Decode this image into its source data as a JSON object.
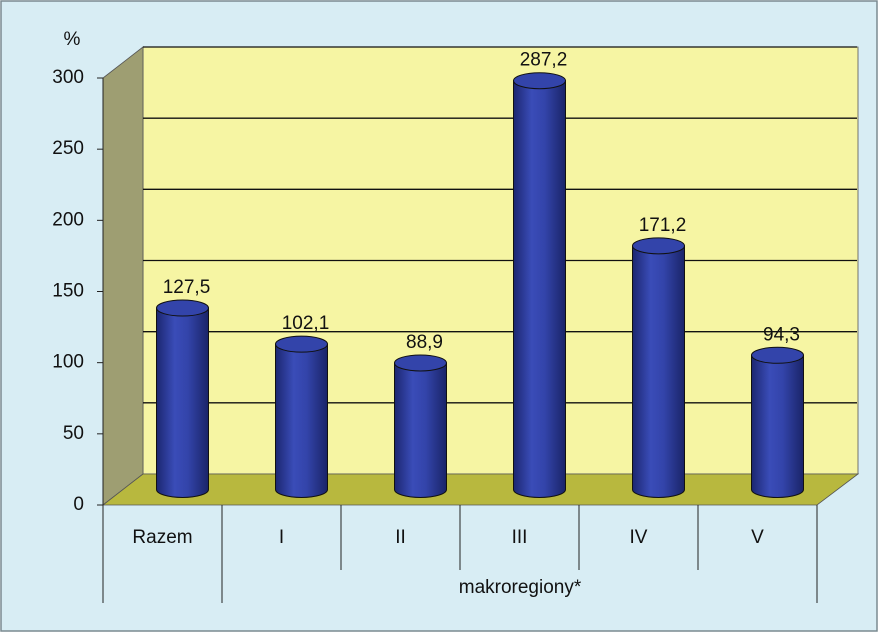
{
  "chart_data": {
    "type": "bar3d-cylinder",
    "y_label": "%",
    "categories": [
      "Razem",
      "I",
      "II",
      "III",
      "IV",
      "V"
    ],
    "group_label": "makroregiony*",
    "values": [
      127.5,
      102.1,
      88.9,
      287.2,
      171.2,
      94.3
    ],
    "value_labels": [
      "127,5",
      "102,1",
      "88,9",
      "287,2",
      "171,2",
      "94,3"
    ],
    "color": "#3344aa",
    "ylim": [
      0,
      300
    ],
    "yticks": [
      0,
      50,
      100,
      150,
      200,
      250,
      300
    ],
    "grid": true
  }
}
